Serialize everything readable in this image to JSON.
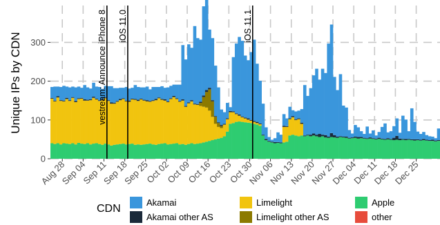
{
  "chart_data": {
    "type": "bar",
    "stacked": true,
    "ylabel": "Unique IPs by CDN",
    "xlabel": "",
    "ylim": [
      0,
      395
    ],
    "yticks": [
      0,
      100,
      200,
      300
    ],
    "grid": true,
    "legend_position": "bottom",
    "legend_title": "CDN",
    "x_start": "2017-08-24",
    "x_ticks": [
      "Aug 28",
      "Sep 04",
      "Sep 11",
      "Sep 18",
      "Sep 25",
      "Oct 02",
      "Oct 09",
      "Oct 16",
      "Oct 23",
      "Oct 30",
      "Nov 06",
      "Nov 13",
      "Nov 20",
      "Nov 27",
      "Dec 04",
      "Dec 11",
      "Dec 18",
      "Dec 25"
    ],
    "series": [
      {
        "name": "Apple",
        "color": "#2ecc71",
        "values": [
          40,
          38,
          40,
          37,
          40,
          39,
          38,
          40,
          37,
          41,
          39,
          38,
          40,
          37,
          39,
          40,
          38,
          36,
          39,
          37,
          34,
          36,
          37,
          38,
          39,
          37,
          38,
          39,
          36,
          37,
          36,
          37,
          38,
          39,
          37,
          36,
          38,
          39,
          40,
          37,
          38,
          39,
          40,
          37,
          38,
          36,
          38,
          40,
          38,
          39,
          40,
          42,
          44,
          46,
          48,
          50,
          52,
          54,
          58,
          70,
          90,
          92,
          95,
          96,
          95,
          94,
          93,
          92,
          90,
          88,
          85,
          60,
          48,
          44,
          42,
          40,
          41,
          40,
          42,
          44,
          60,
          62,
          60,
          58,
          60,
          58,
          60,
          58,
          60,
          58,
          56,
          58,
          55,
          54,
          56,
          55,
          54,
          56,
          55,
          54,
          52,
          53,
          54,
          52,
          53,
          52,
          51,
          52,
          51,
          50,
          51,
          50,
          49,
          50,
          49,
          48,
          49,
          48,
          49,
          48,
          49,
          48,
          47,
          48,
          47,
          48,
          47,
          46,
          46,
          45,
          46
        ]
      },
      {
        "name": "Limelight",
        "color": "#f1c40f",
        "values": [
          115,
          110,
          118,
          112,
          108,
          115,
          111,
          117,
          109,
          113,
          116,
          112,
          110,
          114,
          118,
          113,
          111,
          115,
          117,
          112,
          108,
          106,
          110,
          113,
          115,
          111,
          109,
          114,
          116,
          112,
          117,
          113,
          110,
          108,
          112,
          115,
          118,
          113,
          110,
          109,
          116,
          120,
          114,
          110,
          112,
          98,
          105,
          108,
          102,
          100,
          96,
          92,
          88,
          78,
          60,
          40,
          30,
          25,
          30,
          32,
          30,
          28,
          20,
          15,
          12,
          10,
          8,
          6,
          5,
          4,
          4,
          0,
          0,
          0,
          0,
          0,
          0,
          0,
          40,
          38,
          42,
          45,
          40,
          44,
          30,
          0,
          0,
          0,
          0,
          0,
          0,
          0,
          0,
          0,
          0,
          0,
          0,
          0,
          0,
          0,
          0,
          0,
          0,
          0,
          0,
          0,
          0,
          0,
          0,
          0,
          0,
          0,
          0,
          0,
          0,
          0,
          0,
          0,
          0,
          0,
          0,
          0,
          0,
          0,
          0,
          0,
          0,
          0,
          0,
          0,
          0
        ]
      },
      {
        "name": "Limelight other AS",
        "color": "#8c7a00",
        "values": [
          0,
          0,
          0,
          0,
          0,
          0,
          0,
          0,
          0,
          0,
          0,
          0,
          0,
          0,
          0,
          0,
          0,
          0,
          0,
          0,
          0,
          0,
          0,
          0,
          0,
          0,
          0,
          0,
          0,
          0,
          0,
          0,
          0,
          0,
          0,
          0,
          0,
          0,
          0,
          0,
          0,
          0,
          0,
          0,
          0,
          0,
          0,
          0,
          0,
          0,
          8,
          25,
          40,
          55,
          40,
          18,
          10,
          5,
          0,
          0,
          0,
          0,
          0,
          0,
          0,
          0,
          0,
          0,
          0,
          0,
          0,
          0,
          0,
          0,
          0,
          0,
          0,
          0,
          0,
          0,
          0,
          0,
          0,
          0,
          0,
          0,
          0,
          0,
          0,
          0,
          0,
          0,
          0,
          0,
          0,
          0,
          0,
          0,
          0,
          0,
          0,
          0,
          0,
          0,
          0,
          0,
          0,
          0,
          0,
          0,
          0,
          0,
          0,
          0,
          0,
          0,
          0,
          0,
          0,
          0,
          0,
          0,
          0,
          0,
          0,
          0,
          0,
          0,
          0,
          0,
          0
        ]
      },
      {
        "name": "Akamai other AS",
        "color": "#1b2a3a",
        "values": [
          2,
          2,
          3,
          2,
          2,
          3,
          2,
          2,
          3,
          2,
          2,
          3,
          2,
          2,
          3,
          2,
          2,
          3,
          2,
          2,
          3,
          2,
          2,
          3,
          2,
          2,
          3,
          2,
          2,
          3,
          2,
          2,
          3,
          2,
          2,
          3,
          2,
          2,
          3,
          2,
          2,
          3,
          2,
          2,
          3,
          2,
          2,
          3,
          2,
          2,
          3,
          4,
          5,
          4,
          3,
          2,
          2,
          3,
          2,
          2,
          3,
          2,
          2,
          3,
          2,
          2,
          3,
          2,
          2,
          3,
          2,
          2,
          3,
          2,
          2,
          3,
          2,
          2,
          3,
          2,
          2,
          3,
          2,
          2,
          3,
          2,
          2,
          4,
          5,
          4,
          8,
          4,
          6,
          3,
          10,
          6,
          3,
          2,
          2,
          3,
          2,
          2,
          3,
          4,
          3,
          2,
          2,
          3,
          2,
          2,
          3,
          2,
          2,
          3,
          2,
          6,
          10,
          4,
          2,
          3,
          2,
          2,
          3,
          2,
          2,
          3,
          2,
          2,
          3,
          2,
          2
        ]
      },
      {
        "name": "Akamai",
        "color": "#3a96dc",
        "values": [
          28,
          36,
          25,
          34,
          38,
          29,
          33,
          27,
          35,
          30,
          26,
          37,
          32,
          28,
          36,
          31,
          34,
          26,
          30,
          36,
          42,
          38,
          33,
          29,
          27,
          35,
          31,
          28,
          36,
          33,
          29,
          32,
          35,
          30,
          34,
          31,
          27,
          33,
          30,
          36,
          32,
          29,
          35,
          42,
          140,
          120,
          150,
          135,
          200,
          170,
          160,
          230,
          270,
          150,
          160,
          130,
          90,
          40,
          30,
          40,
          10,
          140,
          180,
          200,
          195,
          160,
          150,
          175,
          210,
          150,
          110,
          80,
          30,
          10,
          5,
          10,
          25,
          20,
          30,
          20,
          30,
          15,
          20,
          20,
          35,
          130,
          100,
          120,
          150,
          170,
          140,
          170,
          160,
          240,
          280,
          150,
          120,
          160,
          80,
          75,
          20,
          10,
          30,
          25,
          15,
          10,
          30,
          10,
          20,
          8,
          15,
          30,
          40,
          15,
          20,
          30,
          45,
          15,
          60,
          50,
          20,
          80,
          45,
          20,
          15,
          18,
          12,
          10,
          8,
          6,
          30
        ]
      },
      {
        "name": "Akamai other AS",
        "color": "#1b2a3a",
        "values": []
      },
      {
        "name": "other",
        "color": "#e74c3c",
        "values": [
          0,
          0,
          0,
          0,
          0,
          0,
          0,
          0,
          0,
          0,
          0,
          0,
          0,
          0,
          0,
          0,
          0,
          0,
          0,
          0,
          0,
          0,
          0,
          0,
          0,
          0,
          0,
          0,
          0,
          0,
          0,
          0,
          0,
          0,
          0,
          0,
          0,
          0,
          0,
          0,
          0,
          0,
          0,
          0,
          0,
          0,
          0,
          0,
          0,
          0,
          0,
          0,
          0,
          0,
          0,
          0,
          0,
          0,
          0,
          0,
          0,
          0,
          0,
          0,
          0,
          0,
          0,
          0,
          0,
          0,
          0,
          0,
          0,
          0,
          0,
          0,
          0,
          0,
          0,
          0,
          0,
          0,
          0,
          0,
          0,
          0,
          0,
          0,
          0,
          0,
          0,
          0,
          0,
          0,
          0,
          0,
          0,
          0,
          0,
          0,
          0,
          0,
          0,
          0,
          0,
          0,
          0,
          0,
          0,
          0,
          0,
          0,
          0,
          0,
          0,
          0,
          0,
          0,
          0,
          0,
          0,
          0,
          0,
          0,
          0,
          0,
          0,
          0,
          0,
          0,
          0
        ]
      }
    ],
    "annotations": [
      {
        "label": "vestream: Announce iPhone 8",
        "x": "2017-09-12"
      },
      {
        "label": "iOS 11.0",
        "x": "2017-09-19"
      },
      {
        "label": "iOS 11.1",
        "x": "2017-10-31"
      }
    ],
    "legend": [
      {
        "label": "Akamai",
        "color": "#3a96dc"
      },
      {
        "label": "Akamai other AS",
        "color": "#1b2a3a"
      },
      {
        "label": "Limelight",
        "color": "#f1c40f"
      },
      {
        "label": "Limelight other AS",
        "color": "#8c7a00"
      },
      {
        "label": "Apple",
        "color": "#2ecc71"
      },
      {
        "label": "other",
        "color": "#e74c3c"
      }
    ]
  }
}
